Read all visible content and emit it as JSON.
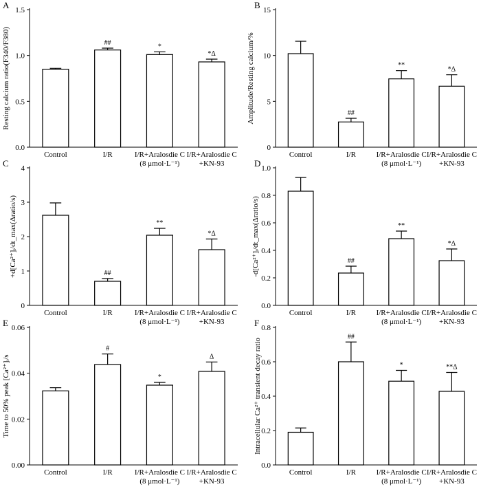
{
  "chart_data": [
    {
      "panel": "A",
      "type": "bar",
      "ylabel": "Resting calcium ratio(F340/F380)",
      "ylim": [
        0,
        1.5
      ],
      "yticks": [
        "0.0",
        "0.5",
        "1.0",
        "1.5"
      ],
      "categories": [
        [
          "Control"
        ],
        [
          "I/R"
        ],
        [
          "I/R+Aralosdie C",
          "(8 μmol·L⁻¹)"
        ],
        [
          "I/R+Aralosdie C",
          "+KN-93"
        ]
      ],
      "values": [
        0.85,
        1.06,
        1.01,
        0.93
      ],
      "errors": [
        0.01,
        0.02,
        0.03,
        0.03
      ],
      "annotations": [
        "",
        "##",
        "*",
        "*Δ"
      ]
    },
    {
      "panel": "B",
      "type": "bar",
      "ylabel": "Amplitude/Resting calcium/%",
      "ylim": [
        0,
        15
      ],
      "yticks": [
        "0",
        "5",
        "10",
        "15"
      ],
      "categories": [
        [
          "Control"
        ],
        [
          "I/R"
        ],
        [
          "I/R+Aralosdie C",
          "(8 μmol·L⁻¹)"
        ],
        [
          "I/R+Aralosdie C",
          "+KN-93"
        ]
      ],
      "values": [
        10.2,
        2.75,
        7.45,
        6.65
      ],
      "errors": [
        1.35,
        0.4,
        0.9,
        1.25
      ],
      "annotations": [
        "",
        "##",
        "**",
        "*Δ"
      ]
    },
    {
      "panel": "C",
      "type": "bar",
      "ylabel": "+d[Ca²⁺]ᵢ/dt_max(Δratio/s)",
      "ylim": [
        0,
        4
      ],
      "yticks": [
        "0",
        "1",
        "2",
        "3",
        "4"
      ],
      "categories": [
        [
          "Control"
        ],
        [
          "I/R"
        ],
        [
          "I/R+Aralosdie C",
          "(8 μmol·L⁻¹)"
        ],
        [
          "I/R+Aralosdie C",
          "+KN-93"
        ]
      ],
      "values": [
        2.62,
        0.7,
        2.04,
        1.62
      ],
      "errors": [
        0.36,
        0.08,
        0.2,
        0.31
      ],
      "annotations": [
        "",
        "##",
        "**",
        "*Δ"
      ]
    },
    {
      "panel": "D",
      "type": "bar",
      "ylabel": "-d[Ca²⁺]ᵢ/dt_max(Δratio/s)",
      "ylim": [
        0,
        1.0
      ],
      "yticks": [
        "0.0",
        "0.2",
        "0.4",
        "0.6",
        "0.8",
        "1.0"
      ],
      "categories": [
        [
          "Control"
        ],
        [
          "I/R"
        ],
        [
          "I/R+Aralosdie C",
          "(8 μmol·L⁻¹)"
        ],
        [
          "I/R+Aralosdie C",
          "+KN-93"
        ]
      ],
      "values": [
        0.83,
        0.235,
        0.485,
        0.325
      ],
      "errors": [
        0.1,
        0.05,
        0.055,
        0.085
      ],
      "annotations": [
        "",
        "##",
        "**",
        "*Δ"
      ]
    },
    {
      "panel": "E",
      "type": "bar",
      "ylabel": "Time to 50% peak [Ca²⁺]ᵢ/s",
      "ylim": [
        0,
        0.06
      ],
      "yticks": [
        "0.00",
        "0.02",
        "0.04",
        "0.06"
      ],
      "categories": [
        [
          "Control"
        ],
        [
          "I/R"
        ],
        [
          "I/R+Aralosdie C",
          "(8 μmol·L⁻¹)"
        ],
        [
          "I/R+Aralosdie C",
          "+KN-93"
        ]
      ],
      "values": [
        0.0323,
        0.0438,
        0.0348,
        0.0408
      ],
      "errors": [
        0.0014,
        0.0046,
        0.0012,
        0.0041
      ],
      "annotations": [
        "",
        "#",
        "*",
        "Δ"
      ]
    },
    {
      "panel": "F",
      "type": "bar",
      "ylabel": "Intracellular Ca²⁺ transient decay ratio",
      "ylim": [
        0,
        0.8
      ],
      "yticks": [
        "0.0",
        "0.2",
        "0.4",
        "0.6",
        "0.8"
      ],
      "categories": [
        [
          "Control"
        ],
        [
          "I/R"
        ],
        [
          "I/R+Aralosdie C",
          "(8 μmol·L⁻¹)"
        ],
        [
          "I/R+Aralosdie C",
          "+KN-93"
        ]
      ],
      "values": [
        0.19,
        0.6,
        0.487,
        0.428
      ],
      "errors": [
        0.025,
        0.115,
        0.063,
        0.11
      ],
      "annotations": [
        "",
        "##",
        "*",
        "**Δ"
      ]
    }
  ]
}
